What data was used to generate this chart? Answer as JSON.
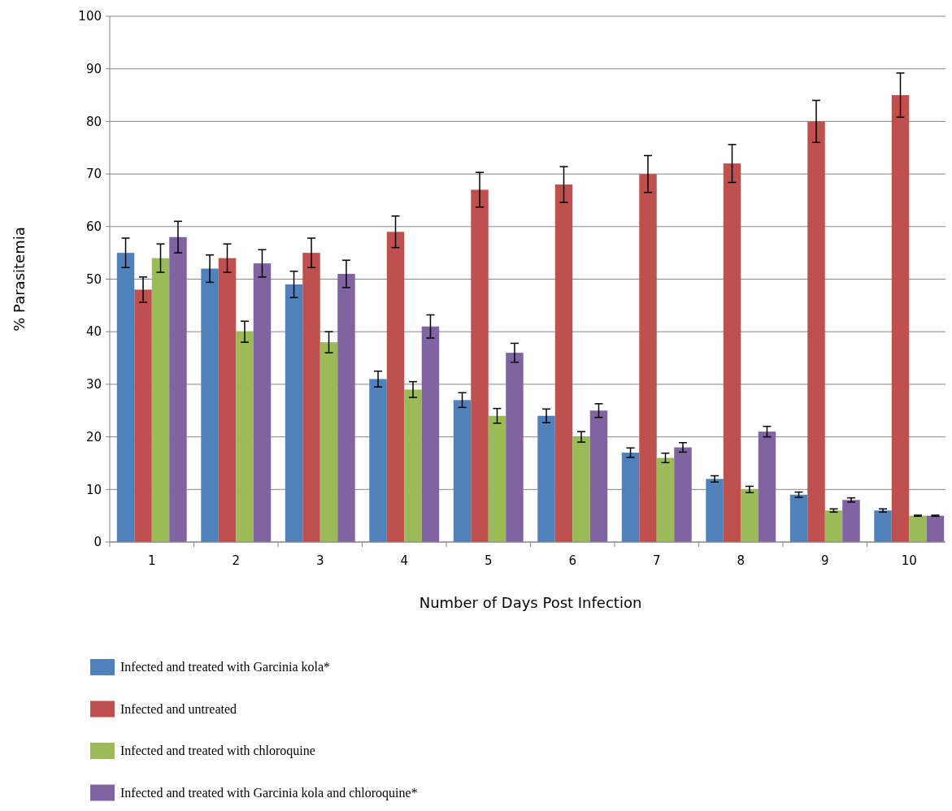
{
  "chart_data": {
    "type": "bar",
    "xlabel": "Number of Days Post Infection",
    "ylabel": "% Parasitemia",
    "categories": [
      "1",
      "2",
      "3",
      "4",
      "5",
      "6",
      "7",
      "8",
      "9",
      "10"
    ],
    "ylim": [
      0,
      100
    ],
    "yticks": [
      0,
      10,
      20,
      30,
      40,
      50,
      60,
      70,
      80,
      90,
      100
    ],
    "grid": "y",
    "legend": "bottom",
    "series": [
      {
        "name": "Infected and treated with Garcinia kola*",
        "color": "#4f81bd",
        "values": [
          55,
          52,
          49,
          31,
          27,
          24,
          17,
          12,
          9,
          6
        ],
        "errors": [
          2.8,
          2.6,
          2.5,
          1.5,
          1.4,
          1.3,
          0.9,
          0.6,
          0.5,
          0.3
        ]
      },
      {
        "name": "Infected and untreated",
        "color": "#c0504d",
        "values": [
          48,
          54,
          55,
          59,
          67,
          68,
          70,
          72,
          80,
          85
        ],
        "errors": [
          2.4,
          2.7,
          2.8,
          3,
          3.3,
          3.4,
          3.5,
          3.6,
          4,
          4.2
        ]
      },
      {
        "name": "Infected and treated with chloroquine",
        "color": "#9bbb59",
        "values": [
          54,
          40,
          38,
          29,
          24,
          20,
          16,
          10,
          6,
          5
        ],
        "errors": [
          2.7,
          2,
          2,
          1.5,
          1.4,
          1,
          0.9,
          0.6,
          0.3,
          0.1
        ]
      },
      {
        "name": "Infected and treated with Garcinia kola and chloroquine*",
        "color": "#8064a2",
        "values": [
          58,
          53,
          51,
          41,
          36,
          25,
          18,
          21,
          8,
          5
        ],
        "errors": [
          3,
          2.6,
          2.6,
          2.2,
          1.8,
          1.3,
          0.9,
          1,
          0.4,
          0.1
        ]
      }
    ]
  }
}
